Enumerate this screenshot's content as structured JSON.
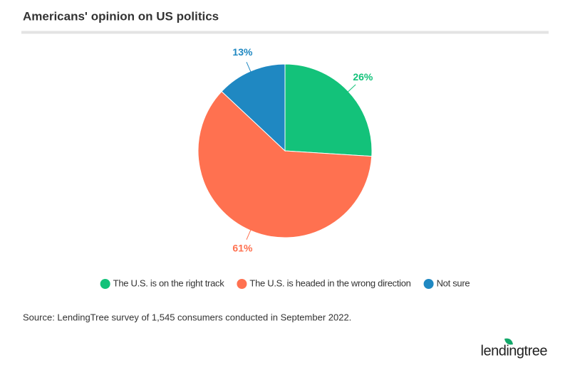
{
  "chart_data": {
    "type": "pie",
    "title": "Americans' opinion on US politics",
    "categories": [
      "The U.S. is on the right track",
      "The U.S. is headed in the wrong direction",
      "Not sure"
    ],
    "values": [
      26,
      61,
      13
    ],
    "value_labels": [
      "26%",
      "61%",
      "13%"
    ],
    "colors": [
      "#13c27a",
      "#ff7150",
      "#1f88c2"
    ],
    "legend": "bottom",
    "source": "Source: LendingTree survey of 1,545 consumers conducted in September 2022.",
    "logo": "lendingtree"
  }
}
